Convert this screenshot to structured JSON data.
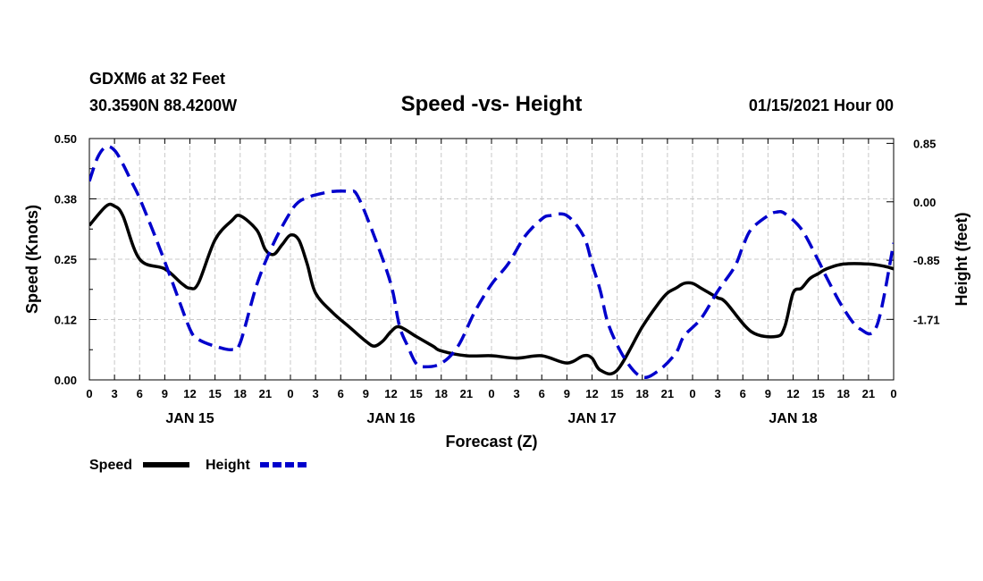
{
  "header": {
    "station": "GDXM6 at 32 Feet",
    "location": "30.3590N 88.4200W",
    "title": "Speed -vs- Height",
    "run": "01/15/2021 Hour 00"
  },
  "chart_data": {
    "type": "line",
    "title": "Speed -vs- Height",
    "xlabel": "Forecast (Z)",
    "ylabel": "Speed (Knots)",
    "y2label": "Height (feet)",
    "xlim": [
      0,
      96
    ],
    "ylim": [
      0,
      0.5
    ],
    "y2lim": [
      -2.59,
      0.92
    ],
    "x_tick_labels": [
      "0",
      "3",
      "6",
      "9",
      "12",
      "15",
      "18",
      "21",
      "0",
      "3",
      "6",
      "9",
      "12",
      "15",
      "18",
      "21",
      "0",
      "3",
      "6",
      "9",
      "12",
      "15",
      "18",
      "21",
      "0",
      "3",
      "6",
      "9",
      "12",
      "15",
      "18",
      "21",
      "0"
    ],
    "day_labels": [
      {
        "label": "JAN 15",
        "x": 12
      },
      {
        "label": "JAN 16",
        "x": 36
      },
      {
        "label": "JAN 17",
        "x": 60
      },
      {
        "label": "JAN 18",
        "x": 84
      }
    ],
    "y_ticks": [
      "0.00",
      "0.12",
      "0.25",
      "0.38",
      "0.50"
    ],
    "y_tick_values": [
      0,
      0.125,
      0.25,
      0.375,
      0.5
    ],
    "y2_ticks": [
      "0.85",
      "0.00",
      "-0.85",
      "-1.71"
    ],
    "y2_tick_values": [
      0.85,
      0,
      -0.85,
      -1.71
    ],
    "grid": true,
    "legend": {
      "position": "bottom-left",
      "entries": [
        "Speed",
        "Height"
      ]
    },
    "series": [
      {
        "name": "Speed",
        "axis": "left",
        "color": "#000000",
        "style": "solid",
        "x": [
          0,
          2,
          3,
          4,
          6,
          9,
          11,
          12,
          13,
          15,
          17,
          18,
          20,
          21,
          22,
          23,
          24,
          25,
          26,
          27,
          29,
          31,
          33,
          34,
          35,
          36,
          37,
          39,
          41,
          42,
          45,
          48,
          51,
          54,
          57,
          59,
          60,
          61,
          63,
          66,
          68,
          69,
          70,
          71,
          72,
          73,
          74,
          75,
          76,
          79,
          82,
          83,
          84,
          85,
          86,
          87,
          88,
          90,
          93,
          95,
          96
        ],
        "y": [
          0.32,
          0.36,
          0.36,
          0.34,
          0.25,
          0.23,
          0.2,
          0.19,
          0.2,
          0.29,
          0.33,
          0.34,
          0.31,
          0.27,
          0.26,
          0.28,
          0.3,
          0.29,
          0.24,
          0.18,
          0.14,
          0.11,
          0.08,
          0.07,
          0.08,
          0.1,
          0.11,
          0.09,
          0.07,
          0.06,
          0.05,
          0.05,
          0.045,
          0.05,
          0.035,
          0.05,
          0.045,
          0.02,
          0.02,
          0.11,
          0.16,
          0.18,
          0.19,
          0.2,
          0.2,
          0.19,
          0.18,
          0.17,
          0.16,
          0.1,
          0.09,
          0.11,
          0.18,
          0.19,
          0.21,
          0.22,
          0.23,
          0.24,
          0.24,
          0.235,
          0.23
        ]
      },
      {
        "name": "Height",
        "axis": "right",
        "color": "#0000cc",
        "style": "dashed",
        "x": [
          0,
          1,
          2,
          3,
          4,
          5,
          6,
          8,
          10,
          12,
          13,
          15,
          17,
          18,
          20,
          22,
          24,
          25,
          26,
          27,
          29,
          31,
          32,
          34,
          36,
          37,
          38,
          39,
          40,
          42,
          44,
          46,
          48,
          50,
          52,
          54,
          55,
          57,
          59,
          60,
          61,
          62,
          64,
          66,
          68,
          70,
          71,
          73,
          75,
          77,
          78,
          79,
          81,
          82,
          83,
          85,
          87,
          88,
          90,
          92,
          94,
          96
        ],
        "y": [
          0.3,
          0.65,
          0.8,
          0.75,
          0.55,
          0.3,
          0.05,
          -0.55,
          -1.2,
          -1.85,
          -2.0,
          -2.1,
          -2.15,
          -2.05,
          -1.2,
          -0.6,
          -0.15,
          0.0,
          0.06,
          0.1,
          0.15,
          0.15,
          0.09,
          -0.5,
          -1.2,
          -1.8,
          -2.1,
          -2.35,
          -2.4,
          -2.35,
          -2.1,
          -1.6,
          -1.2,
          -0.9,
          -0.5,
          -0.25,
          -0.2,
          -0.2,
          -0.5,
          -0.9,
          -1.3,
          -1.8,
          -2.3,
          -2.55,
          -2.45,
          -2.2,
          -1.95,
          -1.7,
          -1.3,
          -0.95,
          -0.65,
          -0.4,
          -0.2,
          -0.15,
          -0.17,
          -0.4,
          -0.85,
          -1.1,
          -1.55,
          -1.85,
          -1.8,
          -0.6
        ]
      }
    ]
  }
}
